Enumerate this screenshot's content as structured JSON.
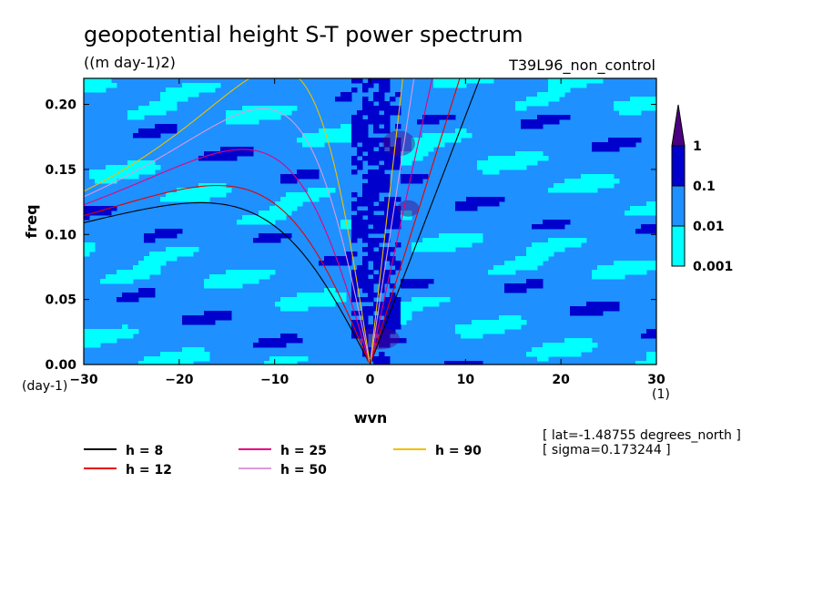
{
  "chart_data": {
    "type": "heatmap",
    "title": "geopotential height S-T power spectrum",
    "subtitle": "((m day-1)2)",
    "run_label": "T39L96_non_control",
    "xlabel": "wvn",
    "ylabel": "freq",
    "x_unit": "(1)",
    "y_unit": "(day-1)",
    "xlim": [
      -30,
      30
    ],
    "ylim": [
      0,
      0.22
    ],
    "xticks": [
      "-30",
      "-20",
      "-10",
      "0",
      "10",
      "20",
      "30"
    ],
    "yticks": [
      "0.00",
      "0.05",
      "0.10",
      "0.15",
      "0.20"
    ],
    "colorbar": {
      "levels": [
        "0.001",
        "0.01",
        "0.1",
        "1"
      ],
      "colors": [
        "#00ffff",
        "#1e90ff",
        "#0000cd",
        "#4b0082"
      ],
      "extend": "max"
    },
    "legend": {
      "entries": [
        {
          "label": "h =  8",
          "color": "#000000",
          "h": 8
        },
        {
          "label": "h = 12",
          "color": "#e60000",
          "h": 12
        },
        {
          "label": "h = 25",
          "color": "#e6007e",
          "h": 25
        },
        {
          "label": "h = 50",
          "color": "#dd99dd",
          "h": 50
        },
        {
          "label": "h = 90",
          "color": "#f0c000",
          "h": 90
        }
      ]
    },
    "info": [
      "[ lat=-1.48755 degrees_north ]",
      "[ sigma=0.173244 ]"
    ]
  }
}
